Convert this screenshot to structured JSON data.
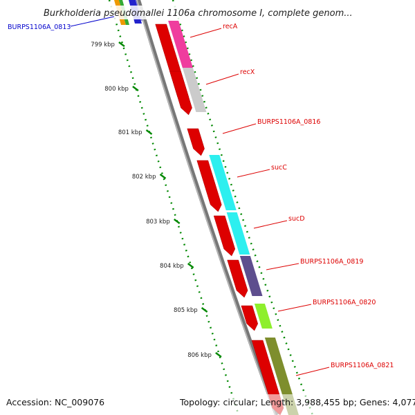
{
  "title": "Burkholderia pseudomallei 1106a chromosome I, complete genom...",
  "accession": "Accession: NC_009076",
  "topology": "Topology: circular; Length: 3,988,455 bp; Genes: 4,077",
  "scale_ticks": [
    "799 kbp",
    "800 kbp",
    "801 kbp",
    "802 kbp",
    "803 kbp",
    "804 kbp",
    "805 kbp",
    "806 kbp"
  ],
  "offscreen_label": {
    "text": "BURPS1106A_0813",
    "color": "#0000cc"
  },
  "genes": [
    {
      "label": "recA",
      "color": "#dd0000",
      "cog_color": "#ee3399"
    },
    {
      "label": "recX",
      "color": "#dd0000",
      "cog_color": "#c8c8c8"
    },
    {
      "label": "BURPS1106A_0816",
      "color": "#dd0000",
      "cog_color": null
    },
    {
      "label": "sucC",
      "color": "#dd0000",
      "cog_color": "#22eeee"
    },
    {
      "label": "sucD",
      "color": "#dd0000",
      "cog_color": "#22eeee"
    },
    {
      "label": "BURPS1106A_0819",
      "color": "#dd0000",
      "cog_color": "#554488"
    },
    {
      "label": "BURPS1106A_0820",
      "color": "#dd0000",
      "cog_color": "#88ee22"
    },
    {
      "label": "BURPS1106A_0821",
      "color": "#dd0000",
      "cog_color": "#778822"
    }
  ],
  "colors": {
    "backbone": "#888888",
    "tick": "#008800",
    "label": "#dd0000"
  }
}
